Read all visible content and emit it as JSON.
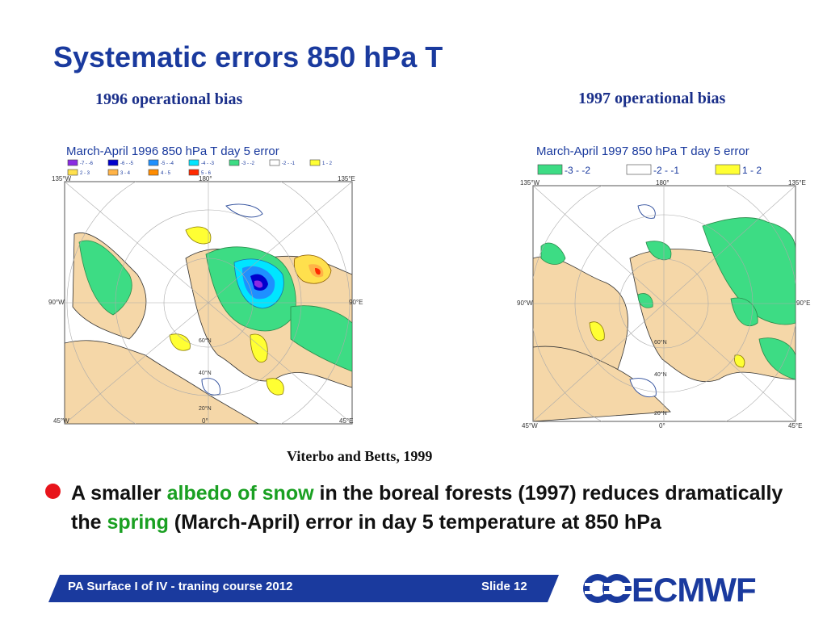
{
  "slide": {
    "title": "Systematic errors 850 hPa T",
    "caption_left": "1996 operational bias",
    "caption_right": "1997 operational bias",
    "citation": "Viterbo and Betts, 1999",
    "bullet": {
      "part1": "A smaller ",
      "highlight1": "albedo of snow",
      "part2": " in the boreal forests (1997) reduces dramatically the ",
      "highlight2": "spring",
      "part3": " (March-April) error in day 5 temperature at 850 hPa"
    },
    "footer": {
      "course": "PA Surface I of IV - traning course 2012",
      "slide_number": "Slide 12"
    },
    "logo_text": "ECMWF"
  },
  "map_left": {
    "title": "March-April 1996 850 hPa T day 5 error",
    "legend": [
      {
        "label": "-7 - -6",
        "color": "#8a2be2"
      },
      {
        "label": "-6 - -5",
        "color": "#0000cd"
      },
      {
        "label": "-5 - -4",
        "color": "#1e90ff"
      },
      {
        "label": "-4 - -3",
        "color": "#00e5ff"
      },
      {
        "label": "-3 - -2",
        "color": "#3ddc84"
      },
      {
        "label": "-2 - -1",
        "color": "#ffffff"
      },
      {
        "label": "1 - 2",
        "color": "#ffff33"
      },
      {
        "label": "2 - 3",
        "color": "#ffe04d"
      },
      {
        "label": "3 - 4",
        "color": "#ffb347"
      },
      {
        "label": "4 - 5",
        "color": "#ff8c00"
      },
      {
        "label": "5 - 6",
        "color": "#ff2a00"
      }
    ],
    "labels": {
      "top_left": "135°W",
      "top_center": "180°",
      "top_right": "135°E",
      "mid_left": "90°W",
      "mid_right": "90°E",
      "bottom_left": "45°W",
      "bottom_center": "0°",
      "bottom_right": "45°E",
      "lat_60": "60°N",
      "lat_40": "40°N",
      "lat_20": "20°N"
    }
  },
  "map_right": {
    "title": "March-April 1997 850 hPa T day 5 error",
    "legend": [
      {
        "label": "-3 - -2",
        "color": "#3ddc84"
      },
      {
        "label": "-2 - -1",
        "color": "#ffffff"
      },
      {
        "label": "1 - 2",
        "color": "#ffff33"
      }
    ],
    "labels": {
      "top_left": "135°W",
      "top_center": "180°",
      "top_right": "135°E",
      "mid_left": "90°W",
      "mid_right": "90°E",
      "bottom_left": "45°W",
      "bottom_center": "0°",
      "bottom_right": "45°E",
      "lat_60": "60°N",
      "lat_40": "40°N",
      "lat_20": "20°N"
    }
  },
  "colors": {
    "title": "#1a3a9e",
    "footer_bar": "#1a3a9e",
    "bullet": "#e8141b",
    "highlight": "#1aa022",
    "land": "#f5d7a8",
    "error_green": "#3ddc84"
  }
}
